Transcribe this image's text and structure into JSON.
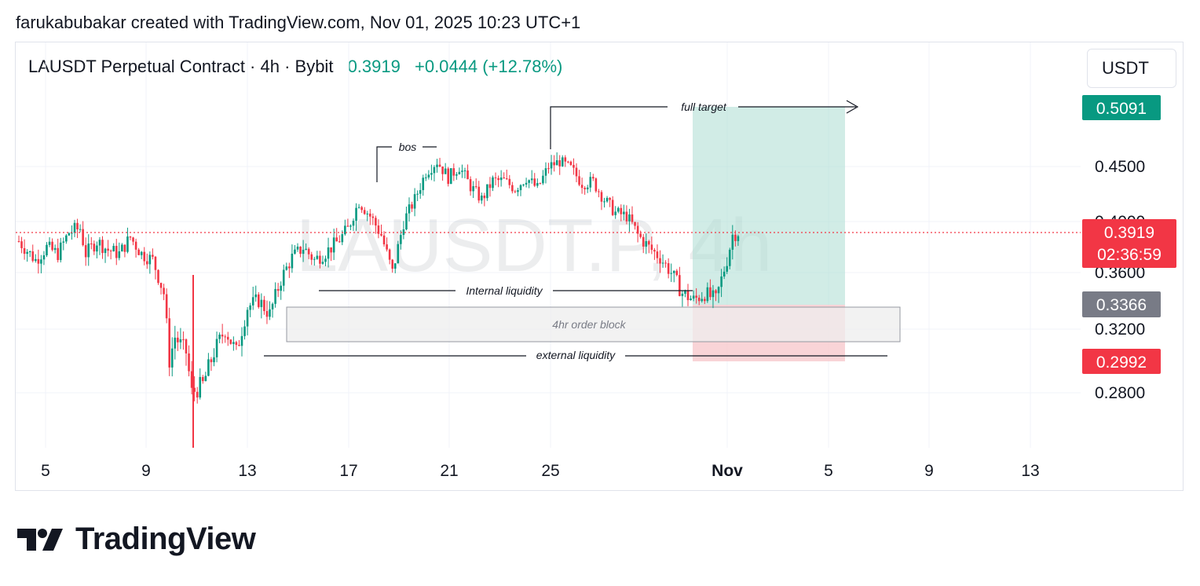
{
  "caption": "farukabubakar created with TradingView.com, Nov 01, 2025 10:23 UTC+1",
  "header": {
    "symbol": "LAUSDT Perpetual Contract · 4h · Bybit",
    "last": "0.3919",
    "change": "+0.0444 (+12.78%)"
  },
  "currency_button": "USDT",
  "watermark_text": "LAUSDT.P, 4h",
  "brand": "TradingView",
  "colors": {
    "up": "#089981",
    "down": "#f23645",
    "grid": "#f0f3fa",
    "target_fill": "#b2dfd6",
    "stop_fill": "#f7c9cd",
    "orderblock_fill": "#eeeeee",
    "stop_label": "#f23645",
    "target_label": "#089981",
    "entry_label": "#787b86"
  },
  "chart_data": {
    "type": "candlestick",
    "y_ticks": [
      "0.4500",
      "0.4000",
      "0.3600",
      "0.3200",
      "0.2800"
    ],
    "y_tick_values": [
      0.45,
      0.4,
      0.36,
      0.32,
      0.28
    ],
    "x_ticks": [
      "5",
      "9",
      "13",
      "17",
      "21",
      "25",
      "Nov",
      "5",
      "9",
      "13"
    ],
    "price_labels": {
      "target": "0.5091",
      "last": "0.3919",
      "countdown": "02:36:59",
      "entry": "0.3366",
      "stop": "0.2992"
    },
    "annotations": {
      "full_target": "full target",
      "bos": "bos",
      "internal_liquidity": "Internal liquidity",
      "order_block": "4hr order block",
      "external_liquidity": "external liquidity"
    },
    "price_path": [
      [
        0,
        0.385
      ],
      [
        3,
        0.37
      ],
      [
        5,
        0.38
      ],
      [
        7,
        0.375
      ],
      [
        9,
        0.392
      ],
      [
        11,
        0.395
      ],
      [
        12,
        0.375
      ],
      [
        14,
        0.385
      ],
      [
        16,
        0.378
      ],
      [
        18,
        0.375
      ],
      [
        20,
        0.388
      ],
      [
        22,
        0.375
      ],
      [
        24,
        0.37
      ],
      [
        26,
        0.345
      ],
      [
        27,
        0.3
      ],
      [
        28,
        0.315
      ],
      [
        30,
        0.305
      ],
      [
        31,
        0.28
      ],
      [
        33,
        0.285
      ],
      [
        35,
        0.305
      ],
      [
        37,
        0.32
      ],
      [
        39,
        0.305
      ],
      [
        41,
        0.335
      ],
      [
        43,
        0.34
      ],
      [
        45,
        0.33
      ],
      [
        47,
        0.355
      ],
      [
        49,
        0.372
      ],
      [
        51,
        0.38
      ],
      [
        53,
        0.37
      ],
      [
        55,
        0.376
      ],
      [
        57,
        0.384
      ],
      [
        59,
        0.394
      ],
      [
        61,
        0.418
      ],
      [
        63,
        0.405
      ],
      [
        65,
        0.39
      ],
      [
        67,
        0.36
      ],
      [
        69,
        0.4
      ],
      [
        71,
        0.42
      ],
      [
        73,
        0.445
      ],
      [
        75,
        0.455
      ],
      [
        77,
        0.44
      ],
      [
        79,
        0.45
      ],
      [
        81,
        0.432
      ],
      [
        83,
        0.42
      ],
      [
        85,
        0.437
      ],
      [
        87,
        0.437
      ],
      [
        89,
        0.43
      ],
      [
        91,
        0.44
      ],
      [
        93,
        0.43
      ],
      [
        95,
        0.45
      ],
      [
        97,
        0.455
      ],
      [
        99,
        0.448
      ],
      [
        101,
        0.435
      ],
      [
        103,
        0.436
      ],
      [
        105,
        0.42
      ],
      [
        107,
        0.408
      ],
      [
        109,
        0.405
      ],
      [
        111,
        0.39
      ],
      [
        113,
        0.38
      ],
      [
        115,
        0.372
      ],
      [
        117,
        0.36
      ],
      [
        119,
        0.345
      ],
      [
        121,
        0.34
      ],
      [
        123,
        0.345
      ],
      [
        125,
        0.34
      ],
      [
        127,
        0.37
      ],
      [
        128,
        0.39
      ],
      [
        129,
        0.392
      ]
    ]
  }
}
